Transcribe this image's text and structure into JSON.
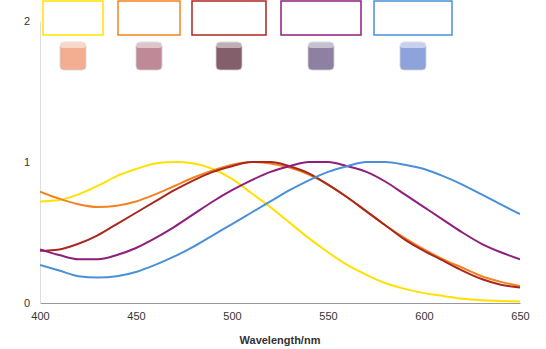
{
  "chart_data": {
    "type": "line",
    "x_label": "Wavelength/nm",
    "x": [
      400,
      410,
      420,
      430,
      440,
      450,
      460,
      470,
      480,
      490,
      500,
      510,
      520,
      530,
      540,
      550,
      560,
      570,
      580,
      590,
      600,
      610,
      620,
      630,
      640,
      650
    ],
    "xlim": [
      400,
      650
    ],
    "xticks": [
      400,
      450,
      500,
      550,
      600,
      650
    ],
    "ylim": [
      0,
      2
    ],
    "yticks": [
      0,
      1,
      2
    ],
    "grid": false,
    "series": [
      {
        "color": "#ffe100",
        "values": [
          0.72,
          0.73,
          0.77,
          0.83,
          0.9,
          0.95,
          0.99,
          1.0,
          0.99,
          0.95,
          0.88,
          0.78,
          0.68,
          0.57,
          0.46,
          0.36,
          0.27,
          0.2,
          0.14,
          0.1,
          0.07,
          0.05,
          0.03,
          0.02,
          0.015,
          0.01
        ]
      },
      {
        "color": "#f5821f",
        "values": [
          0.79,
          0.74,
          0.7,
          0.68,
          0.69,
          0.72,
          0.77,
          0.83,
          0.89,
          0.94,
          0.98,
          1.0,
          0.99,
          0.96,
          0.91,
          0.84,
          0.75,
          0.65,
          0.55,
          0.46,
          0.38,
          0.31,
          0.25,
          0.19,
          0.15,
          0.12
        ]
      },
      {
        "color": "#a8281e",
        "values": [
          0.37,
          0.38,
          0.42,
          0.48,
          0.56,
          0.64,
          0.72,
          0.8,
          0.87,
          0.93,
          0.97,
          1.0,
          1.0,
          0.97,
          0.92,
          0.84,
          0.75,
          0.65,
          0.55,
          0.45,
          0.37,
          0.3,
          0.23,
          0.17,
          0.13,
          0.11
        ]
      },
      {
        "color": "#8e1f7d",
        "values": [
          0.38,
          0.34,
          0.31,
          0.31,
          0.34,
          0.39,
          0.46,
          0.54,
          0.63,
          0.72,
          0.8,
          0.87,
          0.93,
          0.97,
          1.0,
          1.0,
          0.97,
          0.93,
          0.86,
          0.77,
          0.68,
          0.59,
          0.5,
          0.42,
          0.36,
          0.31
        ]
      },
      {
        "color": "#4a90d9",
        "values": [
          0.27,
          0.23,
          0.19,
          0.18,
          0.19,
          0.22,
          0.27,
          0.33,
          0.4,
          0.48,
          0.56,
          0.64,
          0.72,
          0.8,
          0.87,
          0.93,
          0.97,
          1.0,
          1.0,
          0.98,
          0.95,
          0.9,
          0.84,
          0.77,
          0.7,
          0.63
        ]
      }
    ]
  }
}
